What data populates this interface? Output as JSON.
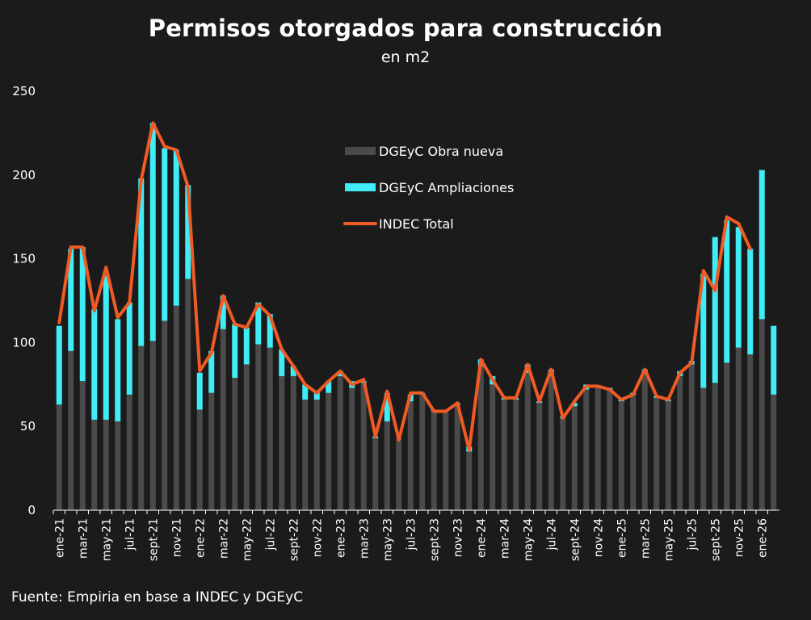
{
  "chart_data": {
    "type": "bar",
    "title": "Permisos otorgados para construcción",
    "subtitle": "en m2",
    "source": "Fuente: Empiria en base a INDEC y DGEyC",
    "ylim": [
      0,
      250
    ],
    "yticks": [
      "250",
      "200",
      "150",
      "100",
      "50",
      "0"
    ],
    "legend_position": "top-center",
    "colors": {
      "obra_nueva": "#4a4a4a",
      "ampliaciones": "#40ecf5",
      "indec_total": "#f05a24",
      "background": "#1b1b1b"
    },
    "categories": [
      "ene-21",
      "feb-21",
      "mar-21",
      "abr-21",
      "may-21",
      "jun-21",
      "jul-21",
      "ago-21",
      "sept-21",
      "oct-21",
      "nov-21",
      "dic-21",
      "ene-22",
      "feb-22",
      "mar-22",
      "abr-22",
      "may-22",
      "jun-22",
      "jul-22",
      "ago-22",
      "sept-22",
      "oct-22",
      "nov-22",
      "dic-22",
      "ene-23",
      "feb-23",
      "mar-23",
      "abr-23",
      "may-23",
      "jun-23",
      "jul-23",
      "ago-23",
      "sept-23",
      "oct-23",
      "nov-23",
      "dic-23",
      "ene-24",
      "feb-24",
      "mar-24",
      "abr-24",
      "may-24",
      "jun-24",
      "jul-24",
      "ago-24",
      "sept-24",
      "oct-24",
      "nov-24",
      "dic-24",
      "ene-25",
      "feb-25",
      "mar-25",
      "abr-25",
      "may-25",
      "jun-25",
      "jul-25",
      "ago-25",
      "sept-25",
      "oct-25",
      "nov-25",
      "dic-25",
      "ene-26",
      "feb-26"
    ],
    "tick_labels": [
      "ene-21",
      "",
      "mar-21",
      "",
      "may-21",
      "",
      "jul-21",
      "",
      "sept-21",
      "",
      "nov-21",
      "",
      "ene-22",
      "",
      "mar-22",
      "",
      "may-22",
      "",
      "jul-22",
      "",
      "sept-22",
      "",
      "nov-22",
      "",
      "ene-23",
      "",
      "mar-23",
      "",
      "may-23",
      "",
      "jul-23",
      "",
      "sept-23",
      "",
      "nov-23",
      "",
      "ene-24",
      "",
      "mar-24",
      "",
      "may-24",
      "",
      "jul-24",
      "",
      "sept-24",
      "",
      "nov-24",
      "",
      "ene-25",
      "",
      "mar-25",
      "",
      "may-25",
      "",
      "jul-25",
      "",
      "sept-25",
      "",
      "nov-25",
      "",
      "ene-26",
      ""
    ],
    "series": [
      {
        "name": "DGEyC Obra nueva",
        "values": [
          63,
          95,
          77,
          54,
          54,
          53,
          69,
          98,
          101,
          113,
          122,
          138,
          60,
          70,
          108,
          79,
          87,
          99,
          97,
          80,
          80,
          66,
          66,
          70,
          80,
          73,
          76,
          43,
          53,
          43,
          65,
          69,
          59,
          59,
          63,
          35,
          86,
          75,
          66,
          66,
          82,
          64,
          80,
          55,
          62,
          72,
          73,
          72,
          65,
          69,
          82,
          67,
          65,
          80,
          87,
          73,
          76,
          88,
          97,
          93,
          114,
          69
        ]
      },
      {
        "name": "DGEyC Ampliaciones",
        "values": [
          47,
          61,
          80,
          66,
          86,
          61,
          55,
          100,
          130,
          103,
          93,
          56,
          22,
          25,
          20,
          32,
          22,
          25,
          20,
          16,
          6,
          9,
          5,
          7,
          3,
          4,
          1,
          1,
          17,
          0,
          4,
          1,
          1,
          1,
          1,
          3,
          4,
          5,
          1,
          1,
          5,
          1,
          4,
          1,
          2,
          3,
          1,
          1,
          1,
          1,
          2,
          1,
          1,
          3,
          2,
          68,
          87,
          85,
          72,
          63,
          89,
          41
        ]
      },
      {
        "name": "INDEC Total",
        "values": [
          112,
          157,
          157,
          119,
          145,
          115,
          124,
          197,
          231,
          217,
          215,
          193,
          83,
          94,
          128,
          111,
          109,
          123,
          116,
          96,
          86,
          75,
          70,
          77,
          83,
          75,
          78,
          44,
          71,
          42,
          70,
          70,
          59,
          59,
          64,
          36,
          90,
          78,
          67,
          67,
          87,
          65,
          84,
          55,
          65,
          74,
          74,
          72,
          66,
          69,
          84,
          68,
          66,
          82,
          88,
          143,
          131,
          175,
          171,
          156,
          null,
          null
        ]
      }
    ]
  }
}
